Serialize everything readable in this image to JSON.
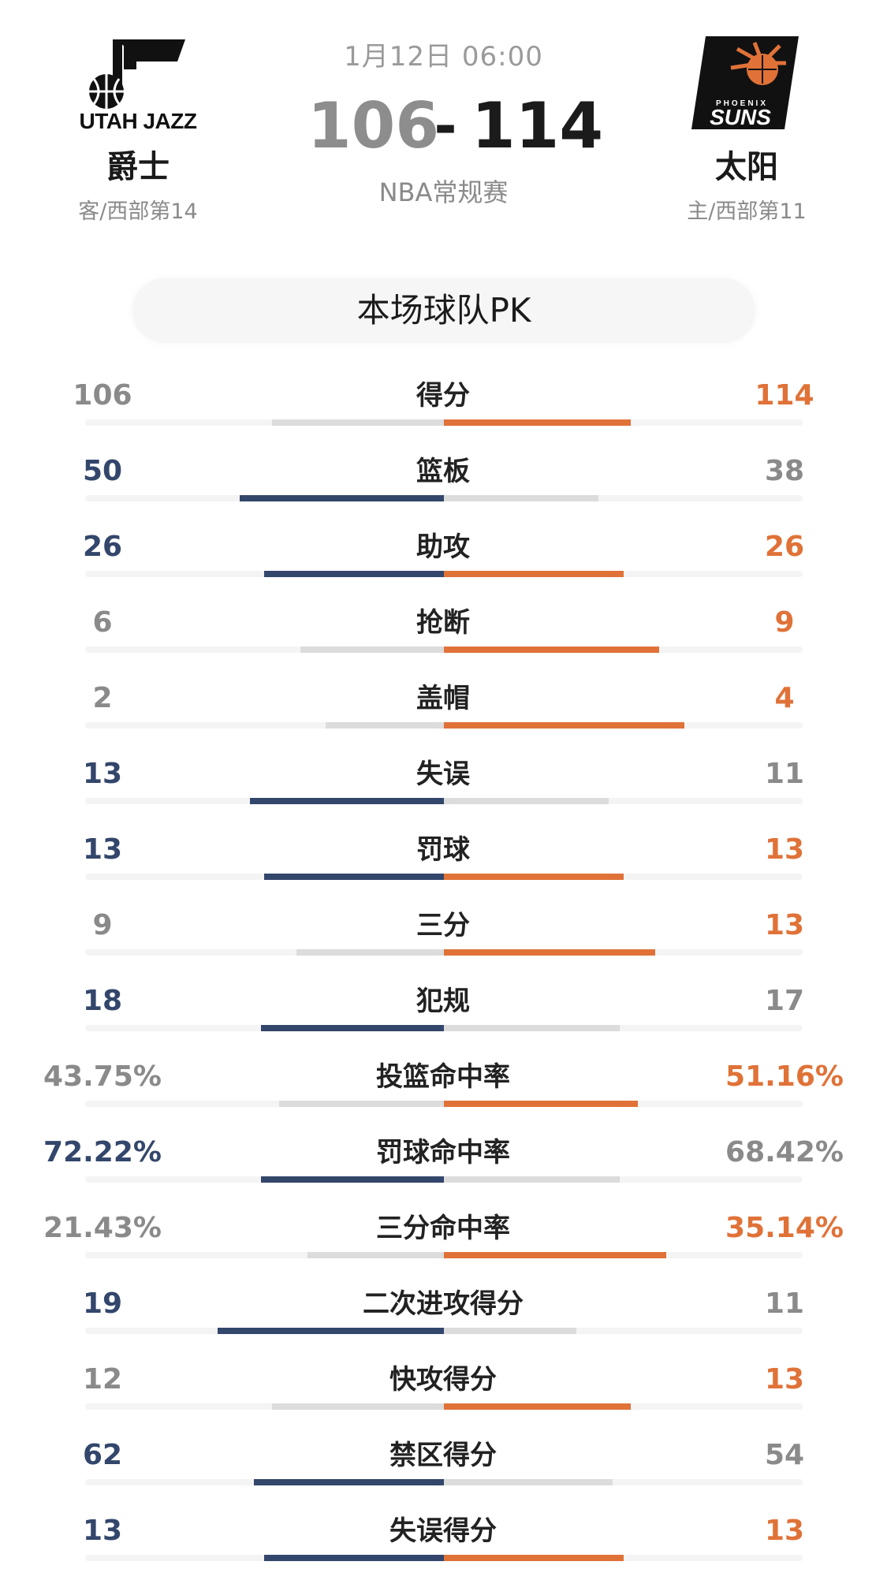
{
  "header": {
    "match_time": "1月12日 06:00",
    "match_type": "NBA常规赛",
    "score_separator": "-",
    "away": {
      "logo_text": "UTAH JAZZ",
      "name": "爵士",
      "rank": "客/西部第14",
      "score": "106"
    },
    "home": {
      "logo_text": "SUNS",
      "name": "太阳",
      "rank": "主/西部第11",
      "score": "114"
    }
  },
  "section_title": "本场球队PK",
  "colors": {
    "away_accent": "#33466b",
    "home_accent": "#e07238",
    "muted_text": "#8a8a8a",
    "muted_bar": "#dcdcdc"
  },
  "stats": [
    {
      "label": "得分",
      "away": "106",
      "home": "114",
      "away_share": 0.48,
      "home_share": 0.52,
      "leader": "home"
    },
    {
      "label": "篮板",
      "away": "50",
      "home": "38",
      "away_share": 0.57,
      "home_share": 0.43,
      "leader": "away"
    },
    {
      "label": "助攻",
      "away": "26",
      "home": "26",
      "away_share": 0.5,
      "home_share": 0.5,
      "leader": "both"
    },
    {
      "label": "抢断",
      "away": "6",
      "home": "9",
      "away_share": 0.4,
      "home_share": 0.6,
      "leader": "home"
    },
    {
      "label": "盖帽",
      "away": "2",
      "home": "4",
      "away_share": 0.33,
      "home_share": 0.67,
      "leader": "home"
    },
    {
      "label": "失误",
      "away": "13",
      "home": "11",
      "away_share": 0.54,
      "home_share": 0.46,
      "leader": "away"
    },
    {
      "label": "罚球",
      "away": "13",
      "home": "13",
      "away_share": 0.5,
      "home_share": 0.5,
      "leader": "both"
    },
    {
      "label": "三分",
      "away": "9",
      "home": "13",
      "away_share": 0.41,
      "home_share": 0.59,
      "leader": "home"
    },
    {
      "label": "犯规",
      "away": "18",
      "home": "17",
      "away_share": 0.51,
      "home_share": 0.49,
      "leader": "away"
    },
    {
      "label": "投篮命中率",
      "away": "43.75%",
      "home": "51.16%",
      "away_share": 0.46,
      "home_share": 0.54,
      "leader": "home"
    },
    {
      "label": "罚球命中率",
      "away": "72.22%",
      "home": "68.42%",
      "away_share": 0.51,
      "home_share": 0.49,
      "leader": "away"
    },
    {
      "label": "三分命中率",
      "away": "21.43%",
      "home": "35.14%",
      "away_share": 0.38,
      "home_share": 0.62,
      "leader": "home"
    },
    {
      "label": "二次进攻得分",
      "away": "19",
      "home": "11",
      "away_share": 0.63,
      "home_share": 0.37,
      "leader": "away"
    },
    {
      "label": "快攻得分",
      "away": "12",
      "home": "13",
      "away_share": 0.48,
      "home_share": 0.52,
      "leader": "home"
    },
    {
      "label": "禁区得分",
      "away": "62",
      "home": "54",
      "away_share": 0.53,
      "home_share": 0.47,
      "leader": "away"
    },
    {
      "label": "失误得分",
      "away": "13",
      "home": "13",
      "away_share": 0.5,
      "home_share": 0.5,
      "leader": "both"
    }
  ]
}
